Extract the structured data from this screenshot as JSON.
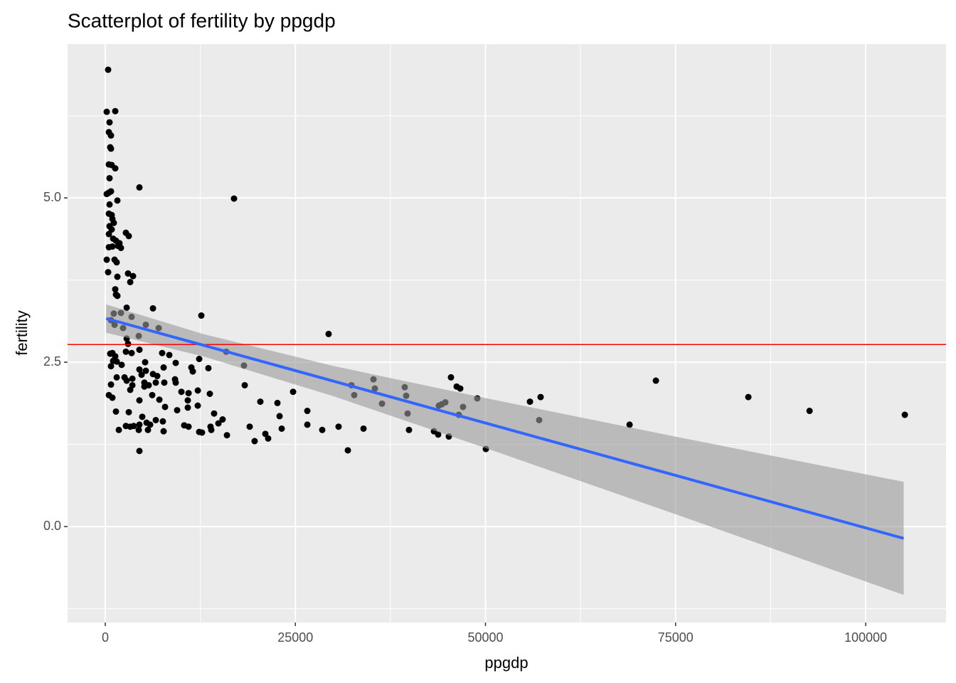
{
  "chart_data": {
    "type": "scatter",
    "title": "Scatterplot of fertility by ppgdp",
    "x_label": "ppgdp",
    "y_label": "fertility",
    "xlim": [
      -4960,
      110570
    ],
    "ylim": [
      -1.46,
      7.34
    ],
    "xticks": [
      0,
      25000,
      50000,
      75000,
      100000
    ],
    "yticks": [
      {
        "value": 0,
        "label": "0.0"
      },
      {
        "value": 2.5,
        "label": "2.5"
      },
      {
        "value": 5,
        "label": "5.0"
      }
    ],
    "grid": true,
    "color": "#000000",
    "x": [
      374,
      190,
      1310,
      560,
      470,
      750,
      650,
      750,
      470,
      840,
      1310,
      560,
      750,
      190,
      470,
      1590,
      4490,
      560,
      470,
      840,
      935,
      1120,
      560,
      840,
      470,
      1030,
      1400,
      2710,
      3090,
      470,
      935,
      1680,
      1870,
      2060,
      1220,
      1500,
      190,
      374,
      2990,
      3650,
      3280,
      1590,
      1310,
      1400,
      1590,
      6270,
      2810,
      12630,
      1120,
      2060,
      3460,
      750,
      1220,
      2340,
      5330,
      7020,
      2810,
      2990,
      4400,
      29370,
      16930,
      650,
      935,
      1310,
      2710,
      3460,
      4490,
      7480,
      8420,
      1030,
      1500,
      750,
      2150,
      5240,
      7670,
      9260,
      12350,
      15900,
      13560,
      18240,
      4490,
      5330,
      11320,
      11510,
      1500,
      2530,
      4770,
      6270,
      6830,
      3560,
      2810,
      9170,
      5140,
      6640,
      3560,
      750,
      7760,
      9260,
      18340,
      3280,
      5140,
      5710,
      10010,
      10950,
      12170,
      13750,
      24700,
      470,
      935,
      6170,
      10850,
      4490,
      7110,
      12160,
      10850,
      7860,
      9450,
      1400,
      3090,
      22640,
      20390,
      26570,
      14310,
      22920,
      4860,
      6640,
      7570,
      15430,
      14880,
      4490,
      5430,
      5900,
      3740,
      2710,
      3280,
      4400,
      5610,
      10380,
      10950,
      13840,
      13940,
      7670,
      1780,
      12720,
      12350,
      16000,
      18990,
      23200,
      26570,
      28530,
      30680,
      21050,
      21420,
      19640,
      4490,
      31900,
      33960,
      32370,
      32740,
      35270,
      35450,
      36390,
      39380,
      39570,
      39760,
      39940,
      43220,
      43780,
      43870,
      44250,
      44720,
      45180,
      45460,
      46210,
      46680,
      46490,
      47050,
      48920,
      50050,
      55850,
      57250,
      57060,
      68950,
      72410,
      84570,
      92620,
      105150
    ],
    "values": [
      6.95,
      6.31,
      6.32,
      6.15,
      6.0,
      5.95,
      5.77,
      5.75,
      5.51,
      5.5,
      5.45,
      5.3,
      5.1,
      5.06,
      5.08,
      4.96,
      5.16,
      4.9,
      4.76,
      4.74,
      4.68,
      4.62,
      4.57,
      4.52,
      4.45,
      4.38,
      4.35,
      4.47,
      4.42,
      4.25,
      4.26,
      4.27,
      4.31,
      4.24,
      4.06,
      4.02,
      4.06,
      3.87,
      3.85,
      3.81,
      3.72,
      3.8,
      3.61,
      3.53,
      3.51,
      3.32,
      3.33,
      3.21,
      3.24,
      3.25,
      3.19,
      3.14,
      3.07,
      3.02,
      3.07,
      3.02,
      2.86,
      2.78,
      2.9,
      2.93,
      4.99,
      2.63,
      2.64,
      2.59,
      2.66,
      2.64,
      2.69,
      2.64,
      2.61,
      2.52,
      2.51,
      2.44,
      2.46,
      2.5,
      2.42,
      2.49,
      2.55,
      2.66,
      2.41,
      2.45,
      2.39,
      2.37,
      2.42,
      2.36,
      2.27,
      2.27,
      2.31,
      2.32,
      2.29,
      2.25,
      2.22,
      2.24,
      2.19,
      2.19,
      2.15,
      2.16,
      2.19,
      2.19,
      2.15,
      2.08,
      2.13,
      2.15,
      2.05,
      2.03,
      2.07,
      2.02,
      2.05,
      2.0,
      1.96,
      2.0,
      1.92,
      1.92,
      1.93,
      1.84,
      1.81,
      1.82,
      1.77,
      1.75,
      1.74,
      1.88,
      1.9,
      1.76,
      1.72,
      1.68,
      1.67,
      1.62,
      1.6,
      1.63,
      1.57,
      1.55,
      1.58,
      1.55,
      1.53,
      1.53,
      1.52,
      1.47,
      1.47,
      1.54,
      1.52,
      1.52,
      1.47,
      1.45,
      1.47,
      1.43,
      1.44,
      1.39,
      1.52,
      1.49,
      1.55,
      1.47,
      1.52,
      1.41,
      1.34,
      1.3,
      1.15,
      1.16,
      1.49,
      2.15,
      2.0,
      2.24,
      2.1,
      1.87,
      2.12,
      1.99,
      1.72,
      1.47,
      1.45,
      1.4,
      1.84,
      1.86,
      1.89,
      1.37,
      2.27,
      2.13,
      2.1,
      1.7,
      1.82,
      1.95,
      1.18,
      1.9,
      1.97,
      1.62,
      1.55,
      2.22,
      1.97,
      1.76,
      1.7
    ],
    "fit": {
      "x": [
        115,
        13000,
        30000,
        50000,
        75000,
        105000
      ],
      "values": [
        3.166,
        2.755,
        2.213,
        1.575,
        0.778,
        -0.18
      ],
      "upper": [
        3.38,
        2.925,
        2.443,
        1.955,
        1.368,
        0.68
      ],
      "lower": [
        2.95,
        2.585,
        1.983,
        1.195,
        0.188,
        -1.04
      ],
      "color": "#3366FF",
      "band_color": "#999999"
    },
    "hline": {
      "value": 2.77,
      "color": "#FF0000"
    }
  }
}
